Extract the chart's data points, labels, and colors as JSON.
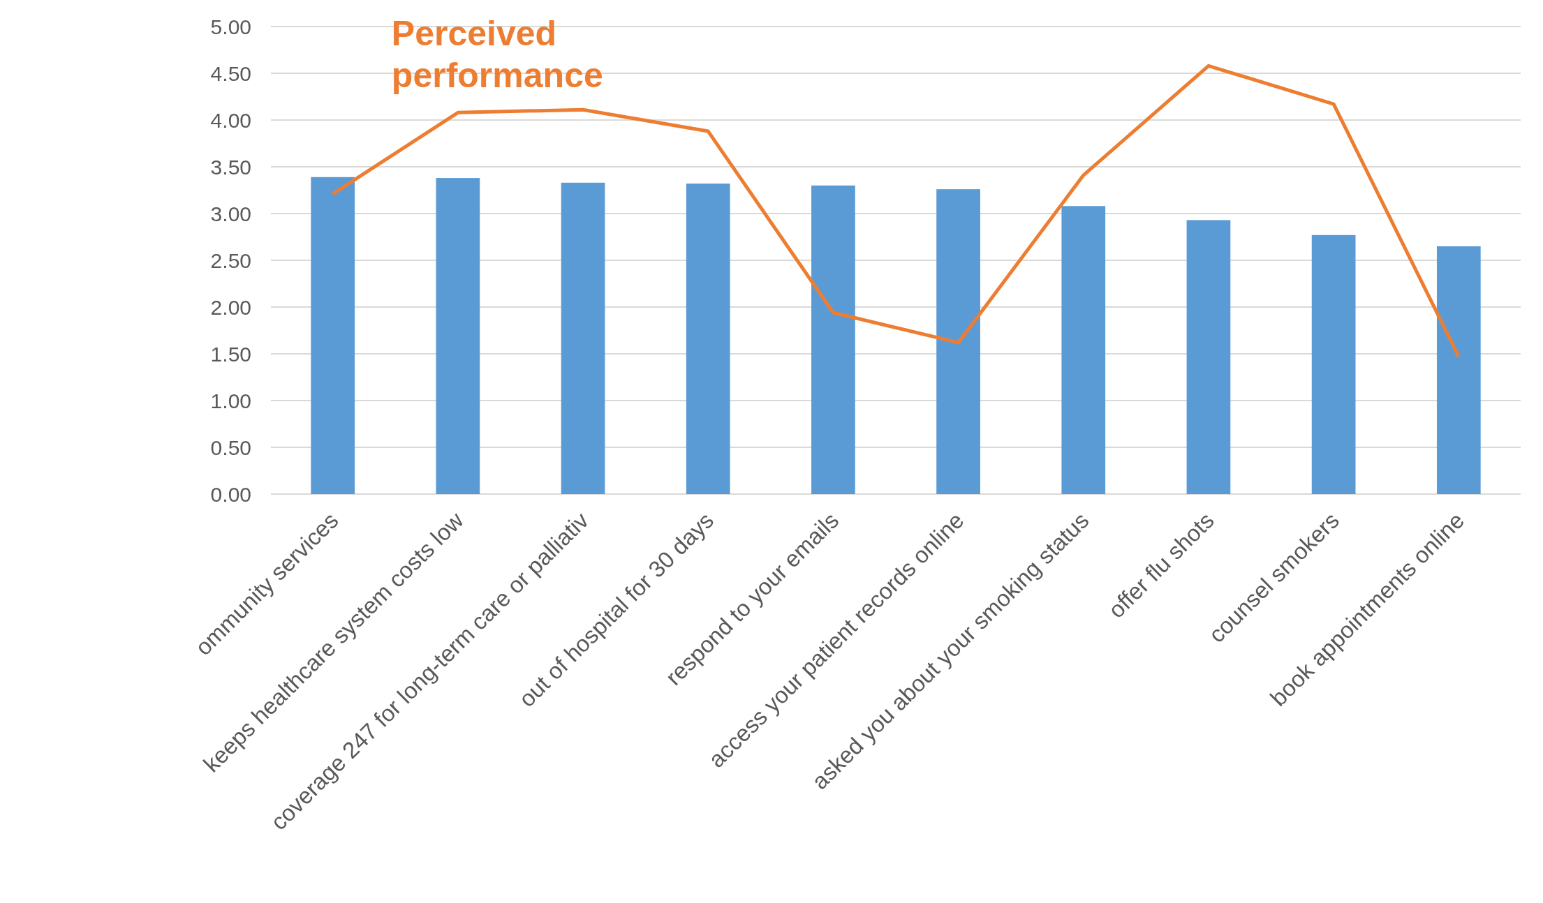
{
  "chart_data": {
    "type": "bar",
    "categories": [
      "ommunity services",
      "keeps healthcare system costs low",
      "coverage 247 for long-term care or palliativ",
      "out of hospital for 30 days",
      "respond to your emails",
      "access your patient records online",
      "asked you about your smoking status",
      "offer flu shots",
      "counsel smokers",
      "book appointments online"
    ],
    "series": [
      {
        "color": "#5b9bd5",
        "values": [
          3.39,
          3.38,
          3.33,
          3.32,
          3.3,
          3.26,
          3.08,
          2.93,
          2.77,
          2.65
        ]
      },
      {
        "type": "line",
        "name": "Perceived performance",
        "color": "#ed7d31",
        "values": [
          3.21,
          4.08,
          4.11,
          3.88,
          1.94,
          1.62,
          3.41,
          4.58,
          4.17,
          1.47
        ]
      }
    ],
    "ylim": [
      0,
      5
    ],
    "yticks": [
      {
        "value": 0,
        "label": "0.00"
      },
      {
        "value": 0.5,
        "label": "0.50"
      },
      {
        "value": 1,
        "label": "1.00"
      },
      {
        "value": 1.5,
        "label": "1.50"
      },
      {
        "value": 2,
        "label": "2.00"
      },
      {
        "value": 2.5,
        "label": "2.50"
      },
      {
        "value": 3,
        "label": "3.00"
      },
      {
        "value": 3.5,
        "label": "3.50"
      },
      {
        "value": 4,
        "label": "4.00"
      },
      {
        "value": 4.5,
        "label": "4.50"
      },
      {
        "value": 5,
        "label": "5.00"
      }
    ],
    "grid": "y",
    "marker": "none"
  }
}
